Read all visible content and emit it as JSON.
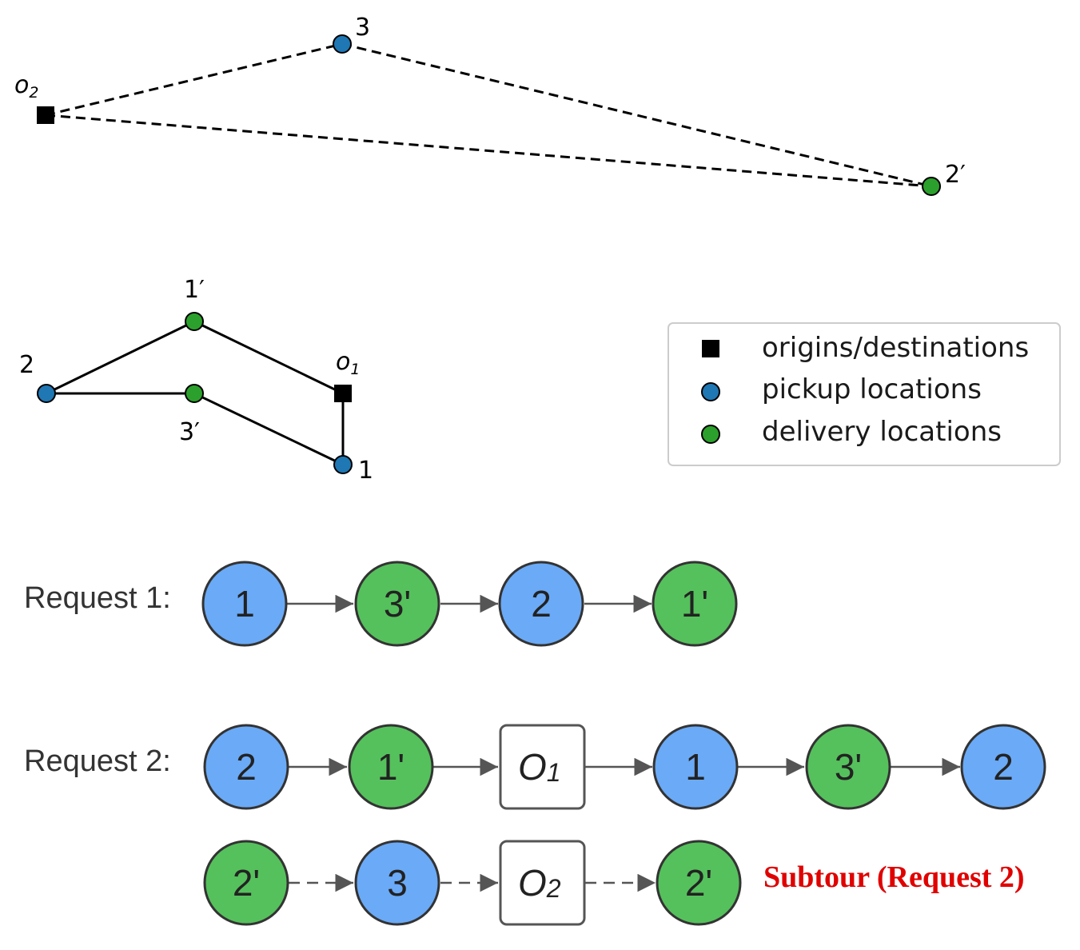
{
  "colors": {
    "pickup": "#1f77b4",
    "delivery": "#2ca02c",
    "origin": "#000000",
    "flow_pickup": "#6aaaf7",
    "flow_delivery": "#55c15c",
    "subtour": "#e00000"
  },
  "map": {
    "top_labels": {
      "o2_base": "o",
      "o2_sub": "2",
      "n3": "3",
      "n2p": "2′"
    },
    "bottom_labels": {
      "n1p": "1′",
      "n2": "2",
      "o1_base": "o",
      "o1_sub": "1",
      "n3p": "3′",
      "n1": "1"
    }
  },
  "legend": {
    "items": [
      {
        "label": "origins/destinations",
        "marker": "square-icon"
      },
      {
        "label": "pickup locations",
        "marker": "circle-icon"
      },
      {
        "label": "delivery locations",
        "marker": "circle-icon"
      }
    ]
  },
  "flow": {
    "request1": {
      "label": "Request 1:",
      "nodes": [
        {
          "label": "1",
          "kind": "pickup"
        },
        {
          "label": "3'",
          "kind": "delivery"
        },
        {
          "label": "2",
          "kind": "pickup"
        },
        {
          "label": "1'",
          "kind": "delivery"
        }
      ]
    },
    "request2": {
      "label": "Request 2:",
      "nodes": [
        {
          "label": "2",
          "kind": "pickup"
        },
        {
          "label": "1'",
          "kind": "delivery"
        },
        {
          "label": "O",
          "sub": "1",
          "kind": "origin"
        },
        {
          "label": "1",
          "kind": "pickup"
        },
        {
          "label": "3'",
          "kind": "delivery"
        },
        {
          "label": "2",
          "kind": "pickup"
        }
      ]
    },
    "subtour": {
      "nodes": [
        {
          "label": "2'",
          "kind": "delivery"
        },
        {
          "label": "3",
          "kind": "pickup"
        },
        {
          "label": "O",
          "sub": "2",
          "kind": "origin"
        },
        {
          "label": "2'",
          "kind": "delivery"
        }
      ],
      "caption": "Subtour (Request 2)"
    }
  }
}
